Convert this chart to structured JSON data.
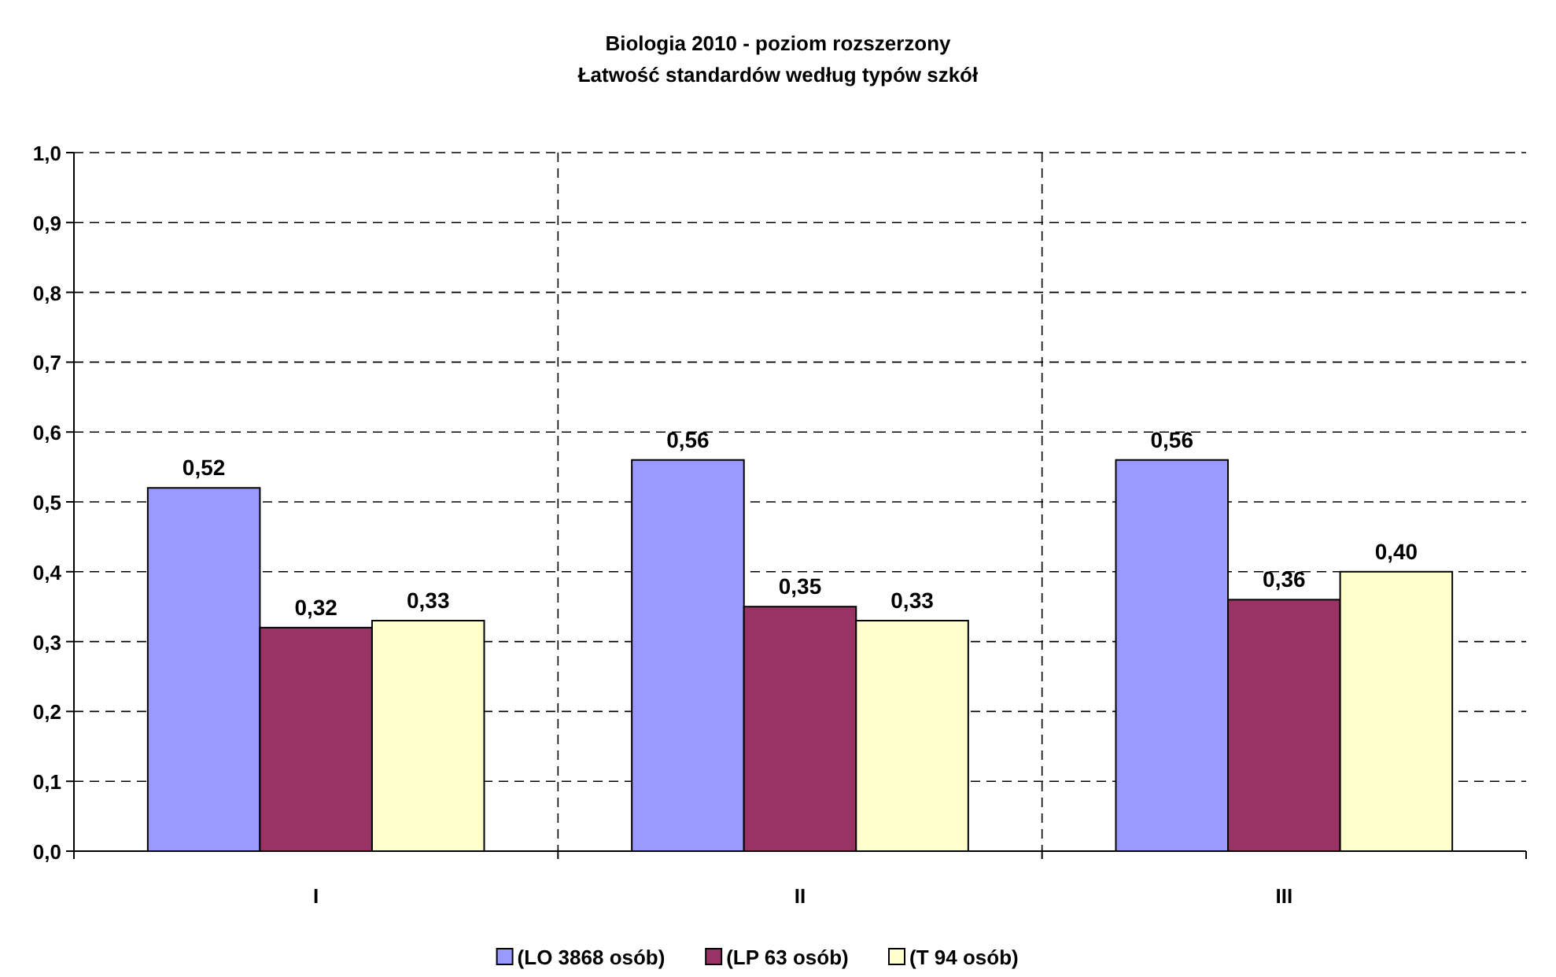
{
  "chart_data": {
    "type": "bar",
    "title": "Biologia 2010 - poziom rozszerzony",
    "subtitle": "Łatwość standardów według typów szkół",
    "categories": [
      "I",
      "II",
      "III"
    ],
    "series": [
      {
        "name": "(LO 3868 osób)",
        "color": "#9999ff",
        "values": [
          0.52,
          0.56,
          0.56
        ],
        "value_labels": [
          "0,52",
          "0,56",
          "0,56"
        ]
      },
      {
        "name": "(LP 63 osób)",
        "color": "#993366",
        "values": [
          0.32,
          0.35,
          0.36
        ],
        "value_labels": [
          "0,32",
          "0,35",
          "0,36"
        ]
      },
      {
        "name": "(T 94 osób)",
        "color": "#ffffcc",
        "values": [
          0.33,
          0.33,
          0.4
        ],
        "value_labels": [
          "0,33",
          "0,33",
          "0,40"
        ]
      }
    ],
    "ylim": [
      0,
      1
    ],
    "yticks": [
      {
        "value": 0,
        "label": "0,0"
      },
      {
        "value": 0.1,
        "label": "0,1"
      },
      {
        "value": 0.2,
        "label": "0,2"
      },
      {
        "value": 0.3,
        "label": "0,3"
      },
      {
        "value": 0.4,
        "label": "0,4"
      },
      {
        "value": 0.5,
        "label": "0,5"
      },
      {
        "value": 0.6,
        "label": "0,6"
      },
      {
        "value": 0.7,
        "label": "0,7"
      },
      {
        "value": 0.8,
        "label": "0,8"
      },
      {
        "value": 0.9,
        "label": "0,9"
      },
      {
        "value": 1,
        "label": "1,0"
      }
    ],
    "grid": true,
    "legend": "bottom"
  }
}
